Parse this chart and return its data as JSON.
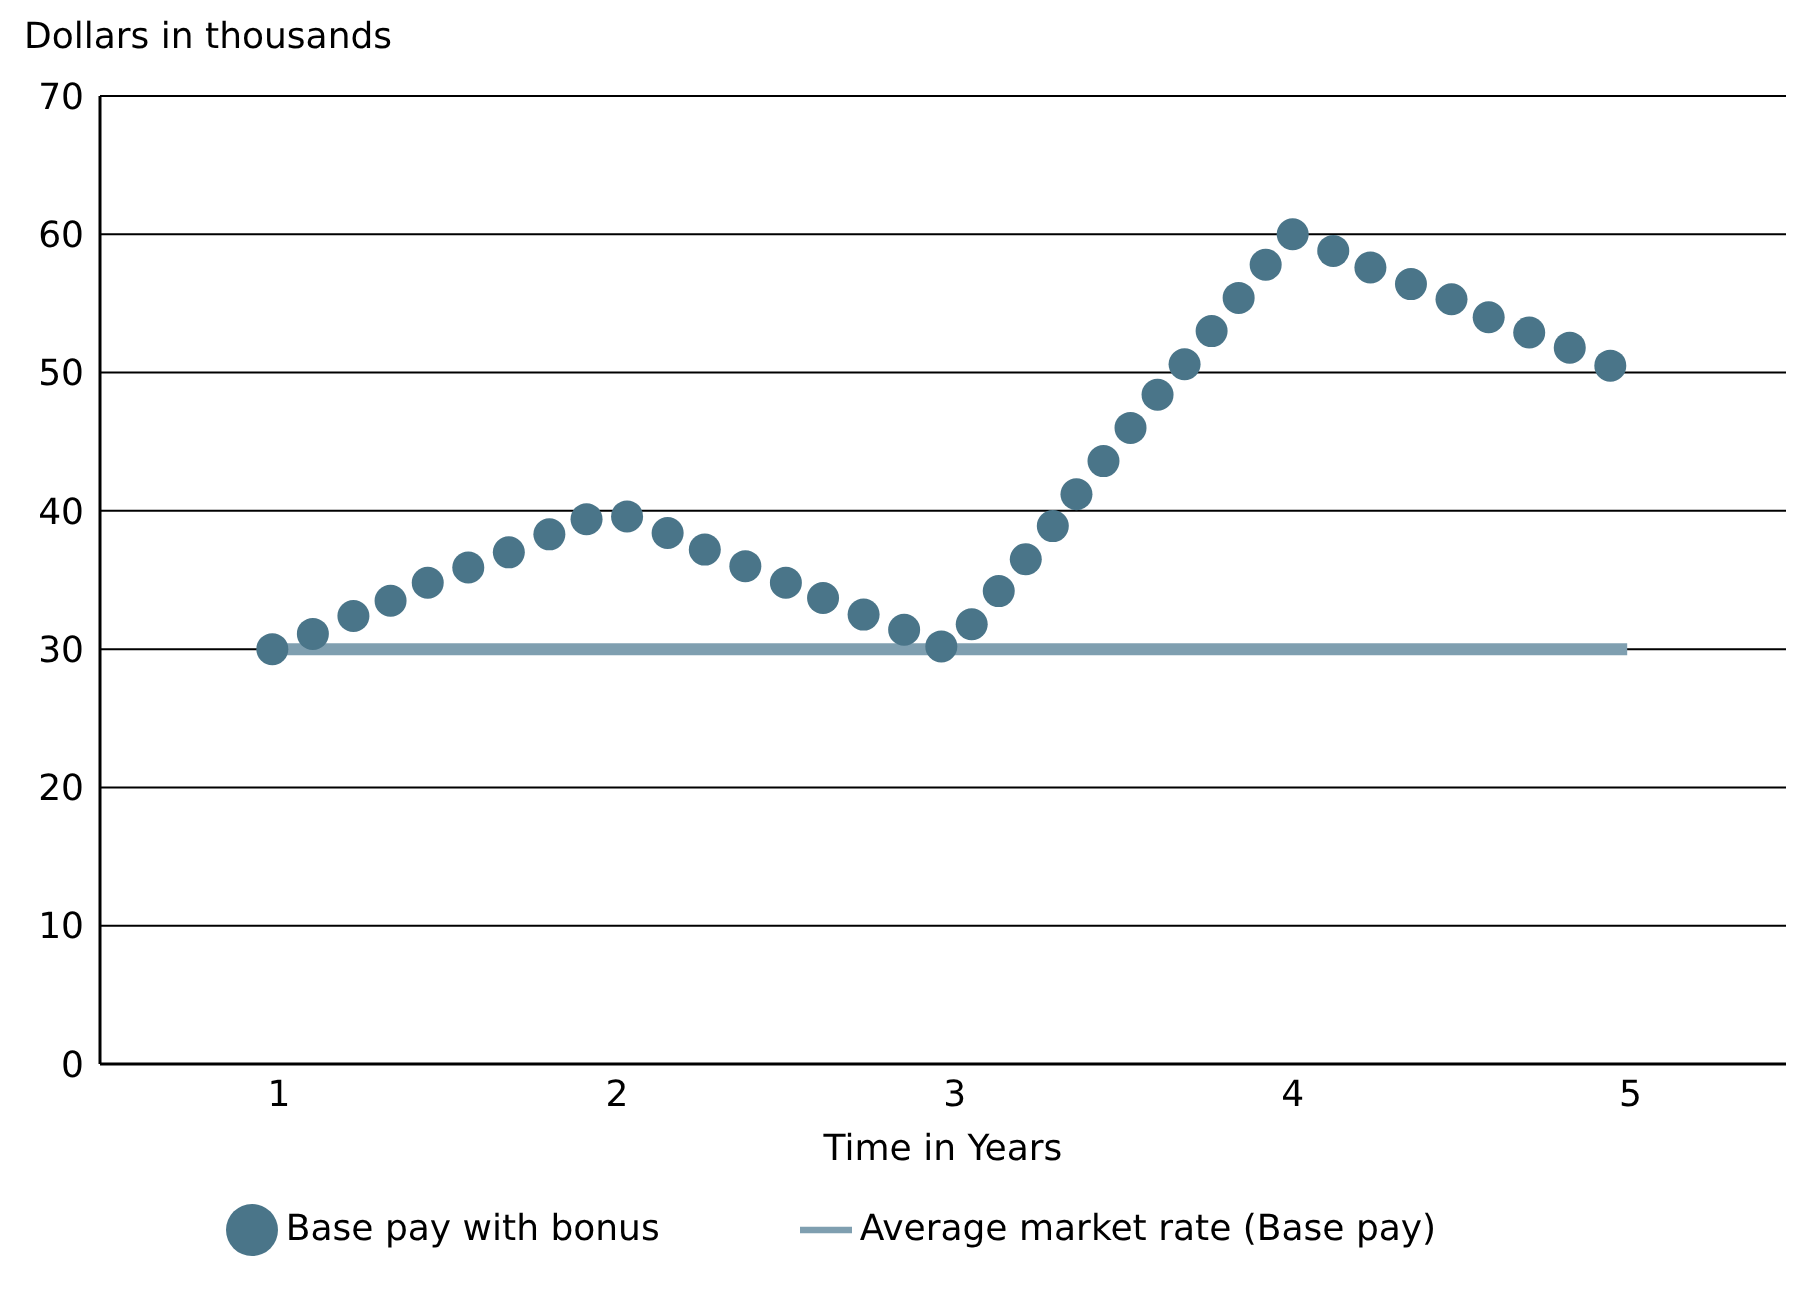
{
  "chart_data": {
    "type": "line",
    "xlabel": "Time in Years",
    "ylabel": "Dollars in thousands",
    "xlim": [
      0.47,
      5.46
    ],
    "xticks": [
      1,
      2,
      3,
      4,
      5
    ],
    "ylim": [
      0,
      70
    ],
    "yticks": [
      0,
      10,
      20,
      30,
      40,
      50,
      60,
      70
    ],
    "grid": "y",
    "legend": "bottom",
    "line_style": "solid",
    "series": [
      {
        "name": "Base pay with bonus",
        "type": "scatter",
        "marker": "circle",
        "color": "#4a7589",
        "x": [
          0.98,
          1.1,
          1.22,
          1.33,
          1.44,
          1.56,
          1.68,
          1.8,
          1.91,
          2.03,
          2.15,
          2.26,
          2.38,
          2.5,
          2.61,
          2.73,
          2.85,
          2.96,
          3.05,
          3.13,
          3.21,
          3.29,
          3.36,
          3.44,
          3.52,
          3.6,
          3.68,
          3.76,
          3.84,
          3.92,
          4.0,
          4.12,
          4.23,
          4.35,
          4.47,
          4.58,
          4.7,
          4.82,
          4.94
        ],
        "values": [
          30.0,
          31.1,
          32.4,
          33.5,
          34.8,
          35.9,
          37.0,
          38.3,
          39.4,
          39.6,
          38.4,
          37.2,
          36.0,
          34.8,
          33.7,
          32.5,
          31.4,
          30.2,
          31.8,
          34.2,
          36.5,
          38.9,
          41.2,
          43.6,
          46.0,
          48.4,
          50.6,
          53.0,
          55.4,
          57.8,
          60.0,
          58.8,
          57.6,
          56.4,
          55.3,
          54.0,
          52.9,
          51.8,
          50.5
        ]
      },
      {
        "name": "Average market rate (Base pay)",
        "color": "#7f9fb0",
        "x": [
          0.98,
          4.99
        ],
        "values": [
          30,
          30
        ]
      }
    ]
  }
}
